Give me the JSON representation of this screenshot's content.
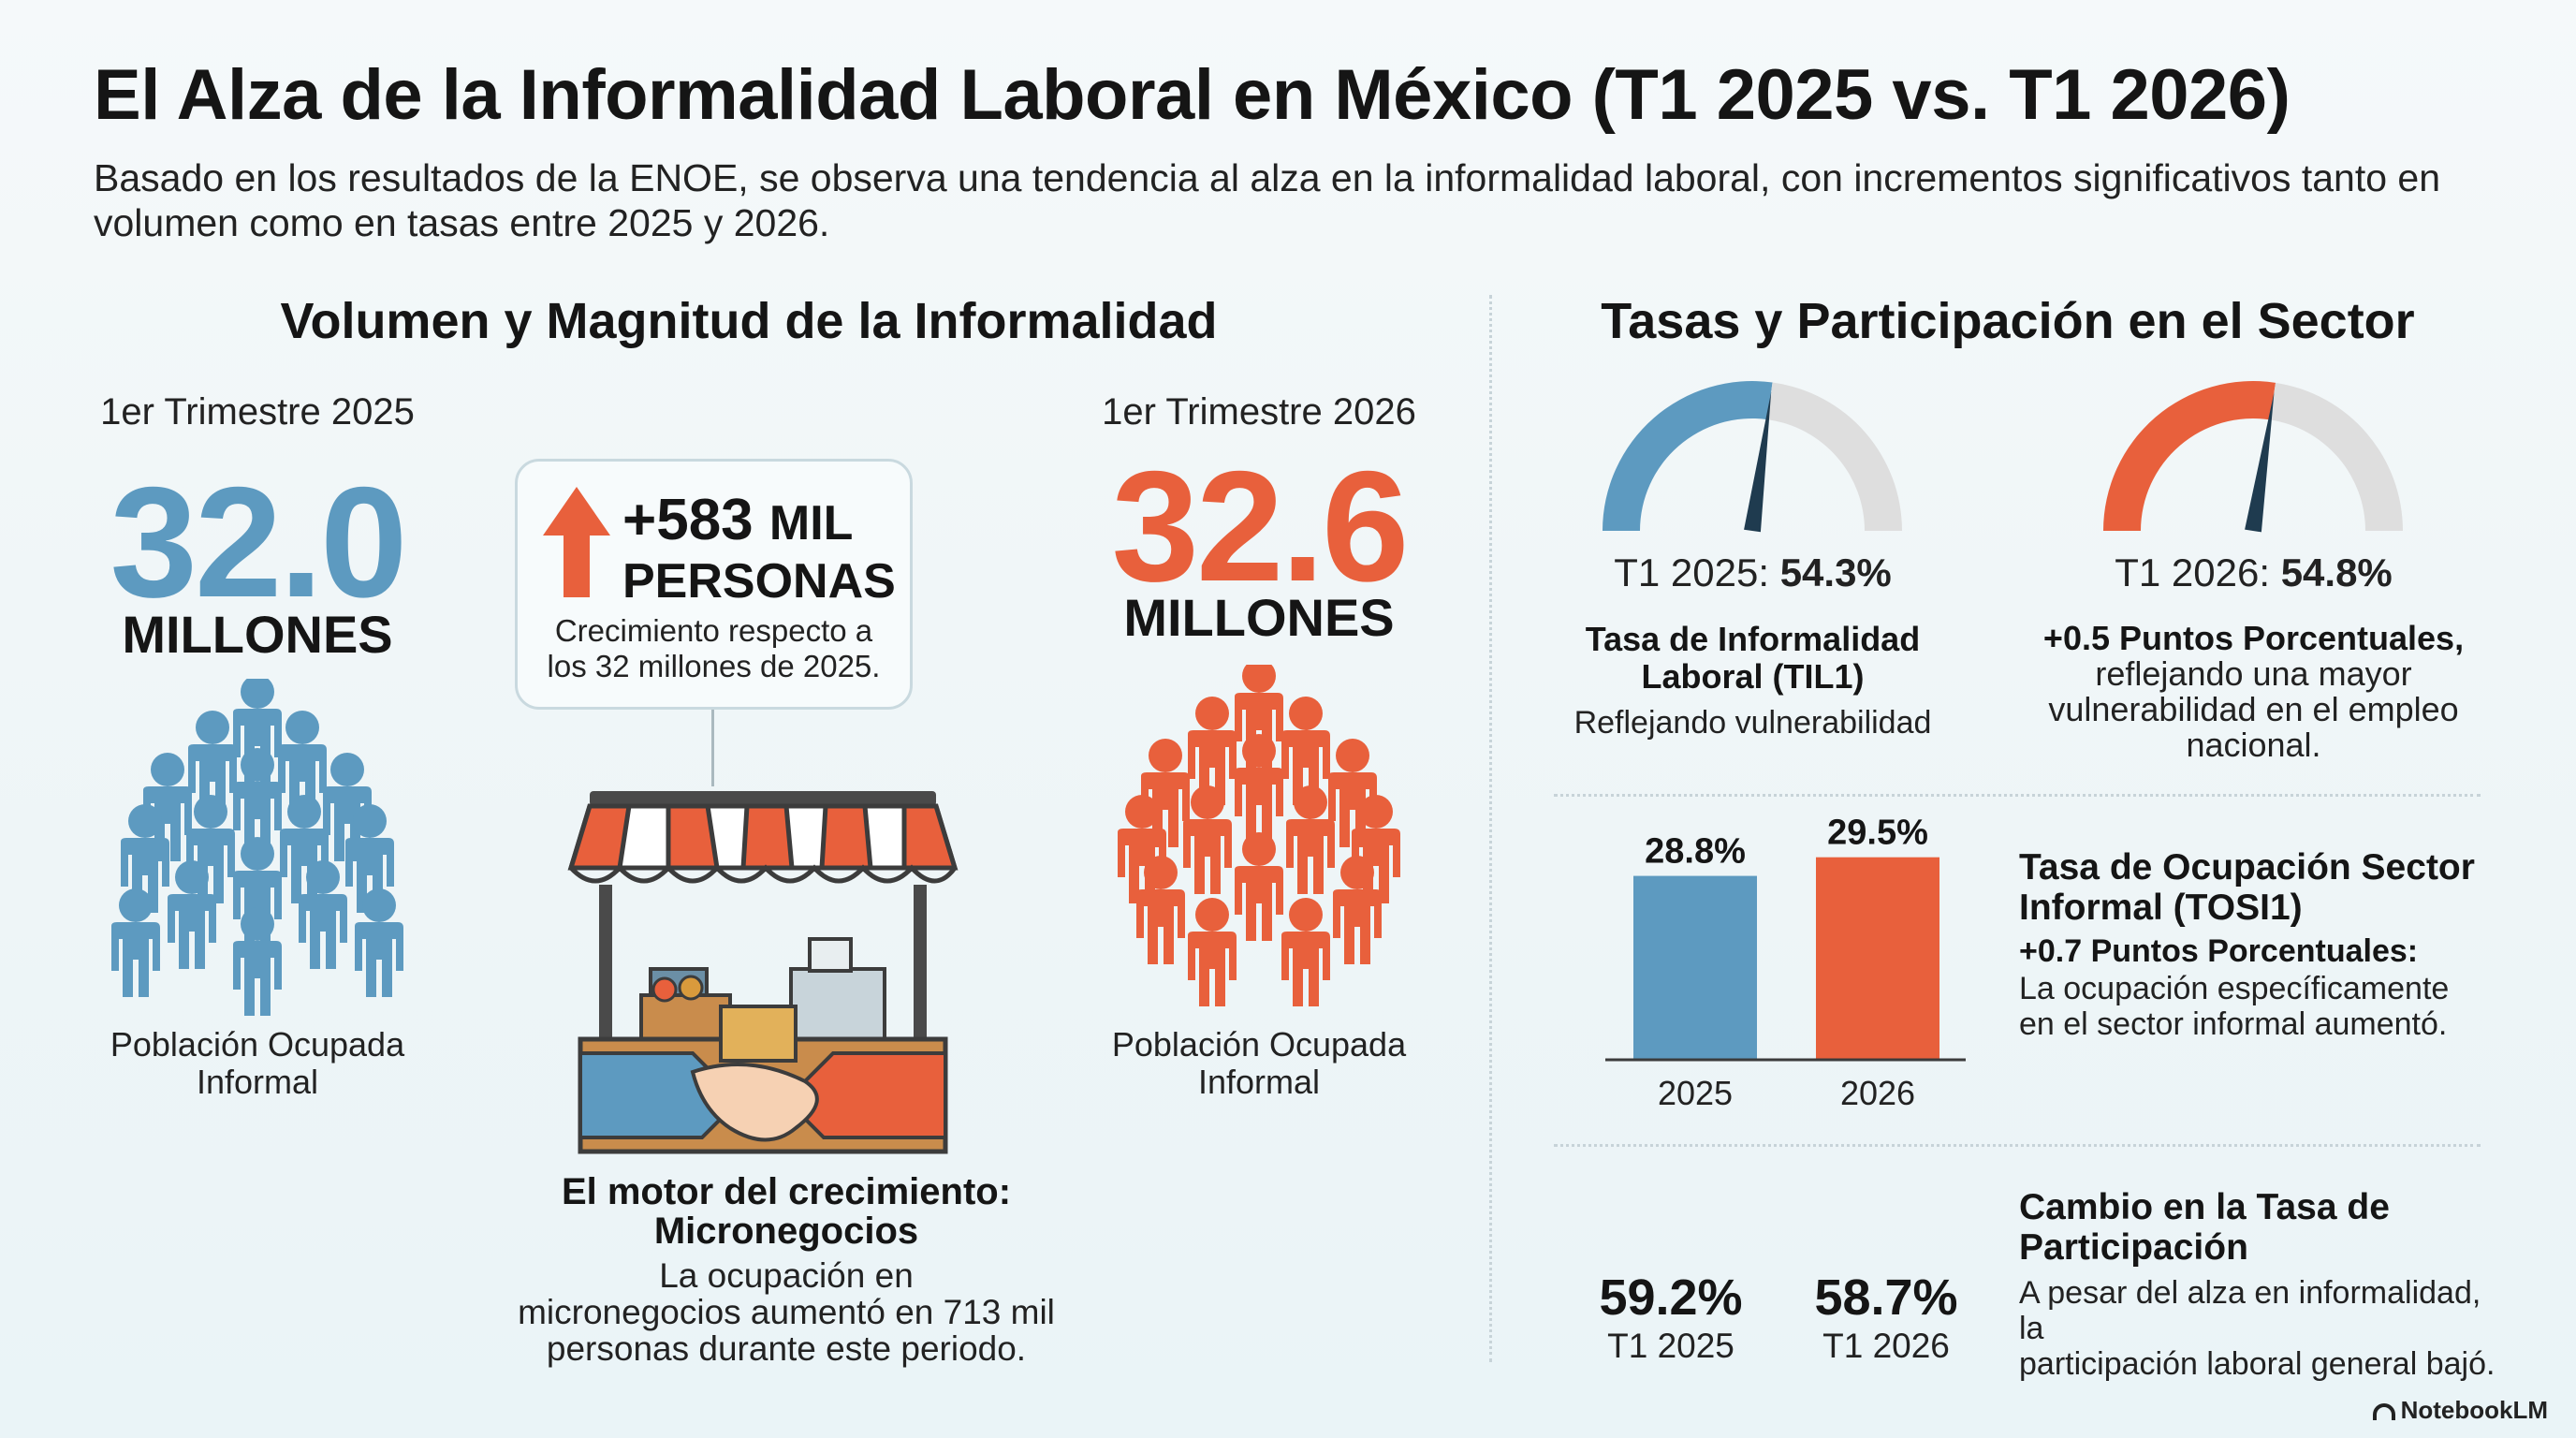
{
  "title": "El Alza de la Informalidad Laboral en México (T1 2025 vs. T1 2026)",
  "subtitle": "Basado en los resultados de la ENOE, se observa una tendencia al alza en la informalidad laboral, con incrementos significativos tanto en volumen como en tasas entre 2025 y 2026.",
  "left_section": {
    "heading": "Volumen y Magnitud de la Informalidad",
    "y2025": {
      "period": "1er Trimestre 2025",
      "value": "32.0",
      "unit": "MILLONES",
      "caption_line1": "Población Ocupada",
      "caption_line2": "Informal",
      "color": "#5d9ac0"
    },
    "y2026": {
      "period": "1er Trimestre 2026",
      "value": "32.6",
      "unit": "MILLONES",
      "caption_line1": "Población Ocupada",
      "caption_line2": "Informal",
      "color": "#e8603c"
    },
    "callout": {
      "line1_num": "+583",
      "line1_unit": "MIL",
      "line2": "PERSONAS",
      "desc_line1": "Crecimiento respecto a",
      "desc_line2": "los 32 millones de 2025.",
      "arrow_icon": "arrow-up-icon"
    },
    "motor": {
      "title_line1": "El motor del crecimiento:",
      "title_line2": "Micronegocios",
      "desc_line1": "La ocupación en",
      "desc_line2": "micronegocios aumentó en 713 mil",
      "desc_line3": "personas durante este periodo.",
      "icon": "market-stall-handshake-icon"
    }
  },
  "right_section": {
    "heading": "Tasas y Participación en el Sector",
    "gauge_2025": {
      "label_prefix": "T1 2025: ",
      "label_value": "54.3%",
      "value": 54.3,
      "title_line1": "Tasa de Informalidad",
      "title_line2": "Laboral (TIL1)",
      "desc": "Reflejando vulnerabilidad",
      "color": "#5d9ac0"
    },
    "gauge_2026": {
      "label_prefix": "T1 2026: ",
      "label_value": "54.8%",
      "value": 54.8,
      "title": "+0.5 Puntos Porcentuales,",
      "desc_line1": "reflejando una mayor",
      "desc_line2": "vulnerabilidad en el empleo",
      "desc_line3": "nacional.",
      "color": "#e8603c"
    },
    "tosi": {
      "bars": [
        {
          "year": "2025",
          "label": "28.8%",
          "value": 28.8,
          "color": "#5d9ac0"
        },
        {
          "year": "2026",
          "label": "29.5%",
          "value": 29.5,
          "color": "#e8603c"
        }
      ],
      "title_line1": "Tasa de Ocupación Sector",
      "title_line2": "Informal (TOSI1)",
      "subtitle": "+0.7 Puntos Porcentuales:",
      "desc_line1": "La ocupación específicamente",
      "desc_line2": "en el sector informal aumentó."
    },
    "participation": {
      "v2025": "59.2%",
      "l2025": "T1 2025",
      "v2026": "58.7%",
      "l2026": "T1 2026",
      "title_line1": "Cambio en la Tasa de",
      "title_line2": "Participación",
      "desc_line1": "A pesar del alza en informalidad, la",
      "desc_line2": "participación laboral general bajó."
    }
  },
  "logo": "NotebookLM"
}
